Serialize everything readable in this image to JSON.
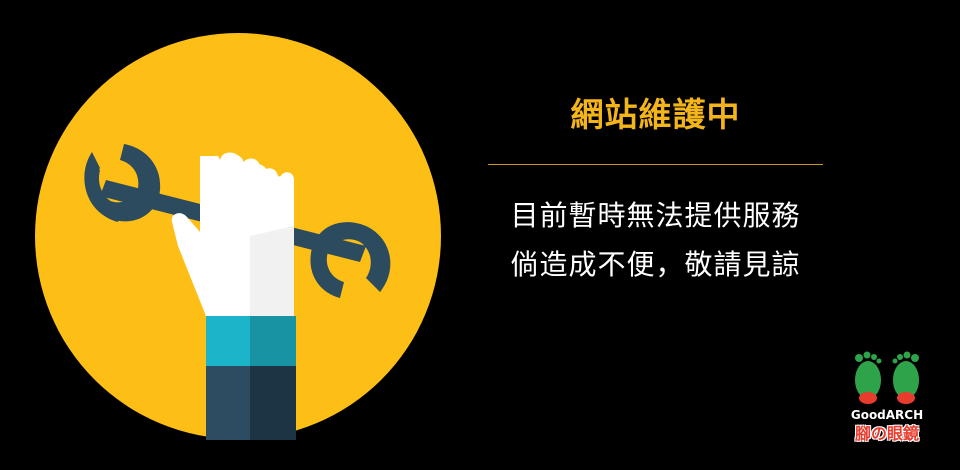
{
  "maintenance": {
    "title": "網站維護中",
    "line_1": "目前暫時無法提供服務",
    "line_2": "倘造成不便，敬請見諒"
  },
  "brand": {
    "name": "GoodARCH",
    "tagline": "腳の眼鏡"
  },
  "illustration": {
    "icon": "wrench-hand-icon"
  },
  "colors": {
    "background": "#000000",
    "circle": "#fdbe15",
    "title": "#f4b51a",
    "divider": "#c8962a",
    "wrench": "#2c4b5f",
    "hand": "#ffffff",
    "cuff_light": "#1bb4c8",
    "cuff_dark": "#1793a3",
    "sleeve_light": "#2d4c62",
    "sleeve_dark": "#1d3444",
    "logo_green": "#2ea34a",
    "logo_red": "#e83c2e"
  }
}
